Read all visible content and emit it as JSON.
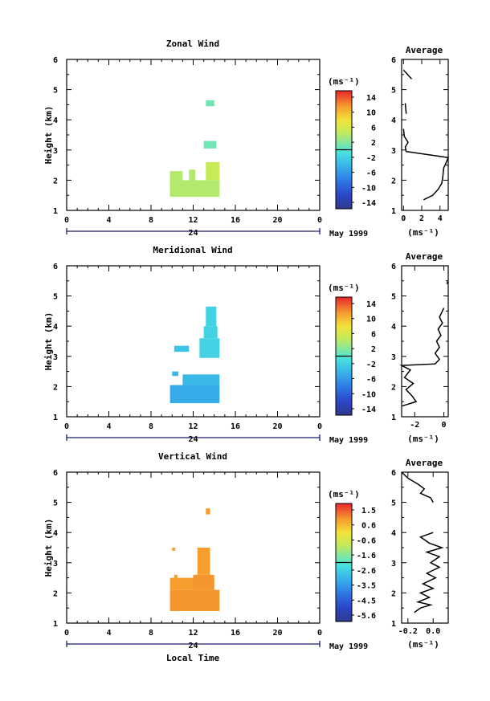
{
  "chart_data": [
    {
      "type": "heatmap",
      "title": "Zonal Wind",
      "ylabel": "Height (km)",
      "xticks": [
        "0",
        "4",
        "8",
        "12",
        "16",
        "20",
        "0"
      ],
      "xlim": [
        0,
        24
      ],
      "ylim": [
        1,
        6
      ],
      "yticks": [
        "1",
        "2",
        "3",
        "4",
        "5",
        "6"
      ],
      "date_label": "24",
      "date_suffix": "May 1999",
      "colorbar": {
        "unit": "(ms⁻¹)",
        "labels": [
          "14",
          "10",
          "6",
          "2",
          "-2",
          "-6",
          "-10",
          "-14"
        ],
        "min": -16,
        "max": 16
      },
      "cells": [
        {
          "x0": 9.8,
          "x1": 14.5,
          "y0": 1.45,
          "y1": 2.0,
          "value": 4
        },
        {
          "x0": 9.8,
          "x1": 11.0,
          "y0": 2.0,
          "y1": 2.3,
          "value": 4
        },
        {
          "x0": 11.6,
          "x1": 12.2,
          "y0": 2.0,
          "y1": 2.35,
          "value": 4
        },
        {
          "x0": 13.2,
          "x1": 14.5,
          "y0": 2.0,
          "y1": 2.6,
          "value": 5
        },
        {
          "x0": 13.0,
          "x1": 14.2,
          "y0": 3.05,
          "y1": 3.3,
          "value": 1
        },
        {
          "x0": 13.2,
          "x1": 14.0,
          "y0": 4.45,
          "y1": 4.65,
          "value": 1
        }
      ],
      "average": {
        "title": "Average",
        "xlabel": "(ms⁻¹)",
        "xticks": [
          "0",
          "2",
          "4"
        ],
        "xlim": [
          -0.2,
          4.9
        ],
        "points": [
          [
            2.2,
            1.35
          ],
          [
            3.2,
            1.5
          ],
          [
            3.8,
            1.7
          ],
          [
            4.2,
            1.9
          ],
          [
            4.3,
            2.1
          ],
          [
            4.4,
            2.4
          ],
          [
            4.7,
            2.6
          ],
          [
            4.9,
            2.75
          ],
          [
            0.3,
            2.95
          ],
          [
            0.2,
            3.1
          ],
          [
            0.5,
            3.25
          ],
          [
            0.1,
            3.45
          ],
          [
            0.0,
            3.7
          ]
        ],
        "segments": [
          [
            [
              0.3,
              4.2
            ],
            [
              0.2,
              4.55
            ]
          ],
          [
            [
              0.9,
              5.35
            ],
            [
              0.3,
              5.55
            ],
            [
              0.0,
              5.65
            ]
          ]
        ]
      }
    },
    {
      "type": "heatmap",
      "title": "Meridional Wind",
      "ylabel": "Height (km)",
      "xticks": [
        "0",
        "4",
        "8",
        "12",
        "16",
        "20",
        "0"
      ],
      "xlim": [
        0,
        24
      ],
      "ylim": [
        1,
        6
      ],
      "yticks": [
        "1",
        "2",
        "3",
        "4",
        "5",
        "6"
      ],
      "date_label": "24",
      "date_suffix": "May 1999",
      "colorbar": {
        "unit": "(ms⁻¹)",
        "labels": [
          "14",
          "10",
          "6",
          "2",
          "-2",
          "-6",
          "-10",
          "-14"
        ],
        "min": -16,
        "max": 16
      },
      "cells": [
        {
          "x0": 9.8,
          "x1": 14.5,
          "y0": 1.45,
          "y1": 2.05,
          "value": -5
        },
        {
          "x0": 11.0,
          "x1": 14.5,
          "y0": 2.05,
          "y1": 2.4,
          "value": -4
        },
        {
          "x0": 10.0,
          "x1": 10.6,
          "y0": 2.35,
          "y1": 2.5,
          "value": -4
        },
        {
          "x0": 10.2,
          "x1": 11.6,
          "y0": 3.15,
          "y1": 3.35,
          "value": -3
        },
        {
          "x0": 12.6,
          "x1": 14.5,
          "y0": 2.95,
          "y1": 3.6,
          "value": -2
        },
        {
          "x0": 13.0,
          "x1": 14.3,
          "y0": 3.6,
          "y1": 4.0,
          "value": -2
        },
        {
          "x0": 13.2,
          "x1": 14.2,
          "y0": 4.0,
          "y1": 4.65,
          "value": -2
        }
      ],
      "average": {
        "title": "Average",
        "xlabel": "(ms⁻¹)",
        "xticks": [
          "-2",
          "0"
        ],
        "xlim": [
          -2.9,
          0.3
        ],
        "points": [
          [
            -2.9,
            1.35
          ],
          [
            -1.9,
            1.5
          ],
          [
            -2.2,
            1.7
          ],
          [
            -2.6,
            1.9
          ],
          [
            -2.1,
            2.1
          ],
          [
            -2.7,
            2.3
          ],
          [
            -2.3,
            2.55
          ],
          [
            -2.9,
            2.7
          ],
          [
            -0.6,
            2.75
          ],
          [
            -0.3,
            2.9
          ],
          [
            -0.6,
            3.1
          ],
          [
            -0.3,
            3.3
          ],
          [
            -0.5,
            3.5
          ],
          [
            -0.2,
            3.7
          ],
          [
            -0.4,
            3.9
          ],
          [
            -0.1,
            4.1
          ],
          [
            -0.3,
            4.3
          ],
          [
            0.0,
            4.6
          ]
        ],
        "segments": [
          [
            [
              0.2,
              5.4
            ],
            [
              0.3,
              5.5
            ]
          ]
        ]
      }
    },
    {
      "type": "heatmap",
      "title": "Vertical Wind",
      "ylabel": "Height (km)",
      "xlabel": "Local Time",
      "xticks": [
        "0",
        "4",
        "8",
        "12",
        "16",
        "20",
        "0"
      ],
      "xlim": [
        0,
        24
      ],
      "ylim": [
        1,
        6
      ],
      "yticks": [
        "1",
        "2",
        "3",
        "4",
        "5",
        "6"
      ],
      "date_label": "24",
      "date_suffix": "May 1999",
      "colorbar": {
        "unit": "(ms⁻¹)",
        "labels": [
          "1.5",
          "0.6",
          "-0.6",
          "-1.6",
          "-2.6",
          "-3.5",
          "-4.5",
          "-5.6"
        ],
        "min": -6,
        "max": 2
      },
      "cells": [
        {
          "x0": 9.8,
          "x1": 14.5,
          "y0": 1.4,
          "y1": 2.1,
          "value": 1.0
        },
        {
          "x0": 9.8,
          "x1": 12.0,
          "y0": 2.1,
          "y1": 2.5,
          "value": 0.9
        },
        {
          "x0": 12.0,
          "x1": 14.0,
          "y0": 2.1,
          "y1": 2.6,
          "value": 1.0
        },
        {
          "x0": 12.4,
          "x1": 13.6,
          "y0": 2.6,
          "y1": 3.5,
          "value": 0.9
        },
        {
          "x0": 10.2,
          "x1": 10.5,
          "y0": 2.4,
          "y1": 2.6,
          "value": 0.9
        },
        {
          "x0": 10.0,
          "x1": 10.3,
          "y0": 3.4,
          "y1": 3.5,
          "value": 0.9
        },
        {
          "x0": 13.2,
          "x1": 13.6,
          "y0": 4.6,
          "y1": 4.8,
          "value": 0.9
        }
      ],
      "average": {
        "title": "Average",
        "xlabel": "(ms⁻¹)",
        "xticks": [
          "-0.2",
          "0.0"
        ],
        "xlim": [
          -0.25,
          0.12
        ],
        "points": [
          [
            -0.15,
            1.35
          ],
          [
            -0.1,
            1.5
          ],
          [
            -0.02,
            1.6
          ],
          [
            -0.12,
            1.7
          ],
          [
            -0.03,
            1.85
          ],
          [
            -0.1,
            2.0
          ],
          [
            0.0,
            2.15
          ],
          [
            -0.08,
            2.3
          ],
          [
            0.02,
            2.5
          ],
          [
            -0.05,
            2.65
          ],
          [
            0.05,
            2.85
          ],
          [
            -0.02,
            3.0
          ],
          [
            0.05,
            3.2
          ],
          [
            -0.05,
            3.35
          ],
          [
            0.07,
            3.5
          ],
          [
            -0.03,
            3.65
          ],
          [
            -0.1,
            3.85
          ],
          [
            0.0,
            4.0
          ]
        ],
        "segments": [
          [
            [
              -0.25,
              6.0
            ],
            [
              -0.2,
              5.8
            ],
            [
              -0.12,
              5.6
            ],
            [
              -0.07,
              5.45
            ],
            [
              -0.1,
              5.3
            ],
            [
              -0.02,
              5.15
            ],
            [
              0.0,
              5.0
            ]
          ]
        ]
      }
    }
  ]
}
